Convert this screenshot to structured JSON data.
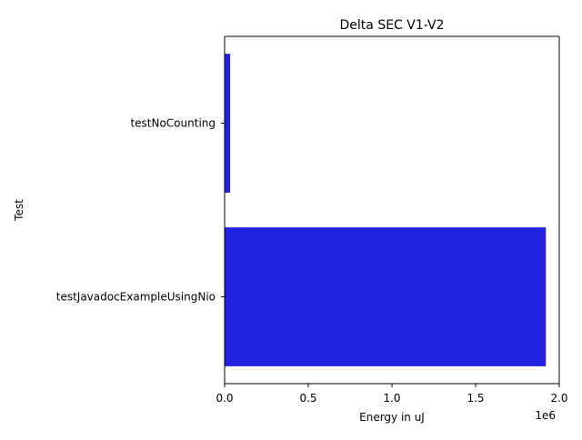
{
  "chart_data": {
    "type": "bar",
    "orientation": "horizontal",
    "title": "Delta SEC V1-V2",
    "xlabel": "Energy in uJ",
    "ylabel": "Test",
    "x_scale_label": "1e6",
    "xlim": [
      0,
      2.0
    ],
    "x_ticks": [
      0.0,
      0.5,
      1.0,
      1.5,
      2.0
    ],
    "x_tick_labels": [
      "0.0",
      "0.5",
      "1.0",
      "1.5",
      "2.0"
    ],
    "categories": [
      "testNoCounting",
      "testJavadocExampleUsingNio"
    ],
    "values": [
      0.033,
      1.92
    ],
    "bar_color": "#2222e0",
    "grid": false,
    "legend": "none"
  }
}
